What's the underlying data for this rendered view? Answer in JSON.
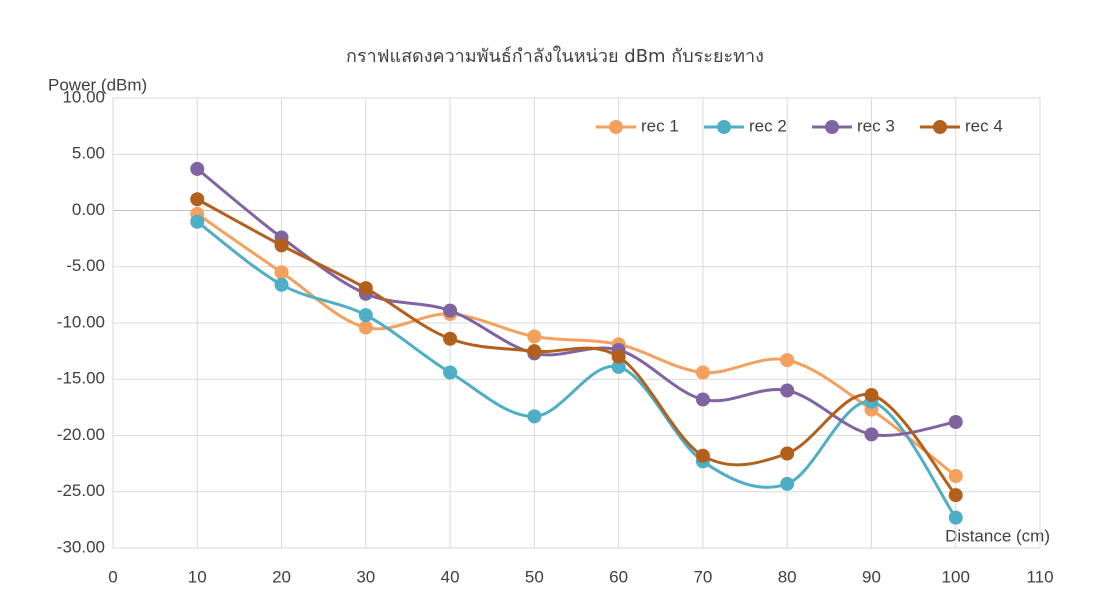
{
  "chart_data": {
    "type": "line",
    "title": "กราฟแสดงความพันธ์กำลังในหน่วย dBm กับระยะทาง",
    "y_label": "Power (dBm)",
    "x_label": "Distance (cm)",
    "x": [
      10,
      20,
      30,
      40,
      50,
      60,
      70,
      80,
      90,
      100
    ],
    "series": [
      {
        "name": "rec 1",
        "color": "#f4a15d",
        "values": [
          -0.3,
          -5.5,
          -10.4,
          -9.2,
          -11.2,
          -11.9,
          -14.4,
          -13.3,
          -17.7,
          -23.6
        ]
      },
      {
        "name": "rec 2",
        "color": "#4eaec6",
        "values": [
          -1.0,
          -6.6,
          -9.3,
          -14.4,
          -18.3,
          -13.9,
          -22.3,
          -24.3,
          -17.0,
          -27.3
        ]
      },
      {
        "name": "rec 3",
        "color": "#8064a2",
        "values": [
          3.7,
          -2.4,
          -7.4,
          -8.9,
          -12.7,
          -12.4,
          -16.8,
          -16.0,
          -19.9,
          -18.8
        ]
      },
      {
        "name": "rec 4",
        "color": "#b3601d",
        "values": [
          1.0,
          -3.1,
          -6.9,
          -11.4,
          -12.5,
          -13.0,
          -21.8,
          -21.6,
          -16.4,
          -25.3
        ]
      }
    ],
    "xlim": [
      0,
      110
    ],
    "xticks": [
      0,
      10,
      20,
      30,
      40,
      50,
      60,
      70,
      80,
      90,
      100,
      110
    ],
    "ylim": [
      -30,
      10
    ],
    "yticks": [
      {
        "value": -30,
        "label": "-30.00"
      },
      {
        "value": -25,
        "label": "-25.00"
      },
      {
        "value": -20,
        "label": "-20.00"
      },
      {
        "value": -15,
        "label": "-15.00"
      },
      {
        "value": -10,
        "label": "-10.00"
      },
      {
        "value": -5,
        "label": "-5.00"
      },
      {
        "value": 0,
        "label": "0.00"
      },
      {
        "value": 5,
        "label": "5.00"
      },
      {
        "value": 10,
        "label": "10.00"
      }
    ],
    "grid": true,
    "smooth": true,
    "legend": "top-right"
  }
}
